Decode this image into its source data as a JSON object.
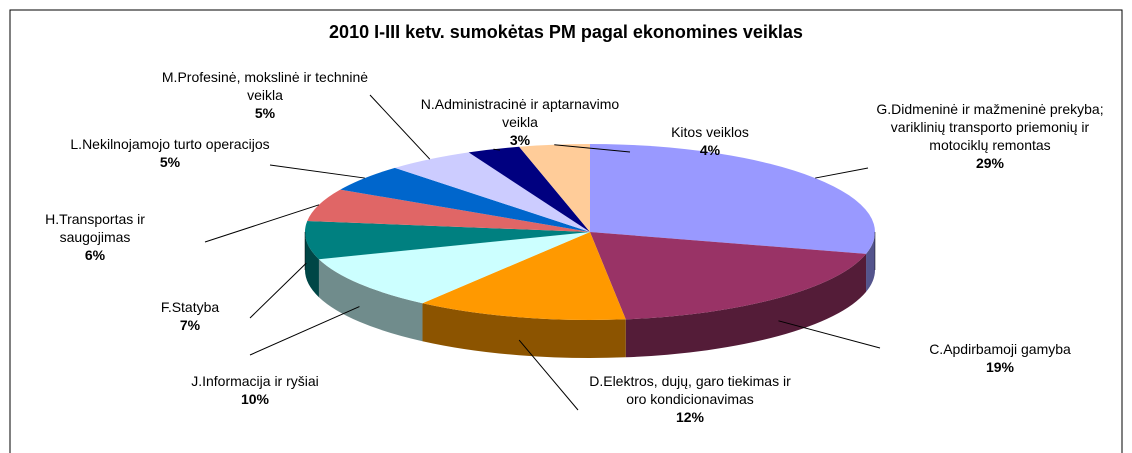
{
  "chart_data": {
    "type": "pie",
    "title": "2010 I-III ketv. sumokėtas PM pagal ekonomines veiklas",
    "categories": [
      "G.Didmeninė ir mažmeninė prekyba; variklinių transporto priemonių ir motociklų remontas",
      "C.Apdirbamoji gamyba",
      "D.Elektros, dujų, garo tiekimas ir oro kondicionavimas",
      "J.Informacija ir ryšiai",
      "F.Statyba",
      "H.Transportas ir saugojimas",
      "L.Nekilnojamojo turto operacijos",
      "M.Profesinė, mokslinė ir techninė veikla",
      "N.Administracinė ir aptarnavimo veikla",
      "Kitos veiklos"
    ],
    "values": [
      29,
      19,
      12,
      10,
      7,
      6,
      5,
      5,
      3,
      4
    ],
    "value_labels": [
      "29%",
      "19%",
      "12%",
      "10%",
      "7%",
      "6%",
      "5%",
      "5%",
      "3%",
      "4%"
    ],
    "colors": [
      "#9999ff",
      "#993366",
      "#ff9900",
      "#ccffff",
      "#008080",
      "#e06666",
      "#0066cc",
      "#ccccff",
      "#000080",
      "#ffcc99"
    ]
  }
}
